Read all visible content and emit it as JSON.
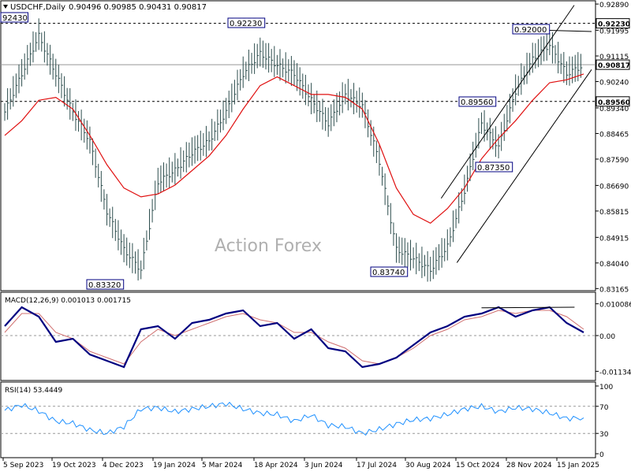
{
  "header": {
    "menu_icon": "triangle-down-icon",
    "symbol": "USDCHF,Daily",
    "ohlc": "0.90496 0.90985 0.90431 0.90817"
  },
  "watermark": "Action Forex",
  "colors": {
    "price_bars": "#2f4f4f",
    "ma": "#e01010",
    "trendline": "#000000",
    "macd": "#000080",
    "signal": "#d07070",
    "rsi": "#1e90ff",
    "level_box": "#000080"
  },
  "chart_data": [
    {
      "type": "line",
      "panel": "price",
      "title": "USDCHF,Daily",
      "y_axis_labels": [
        "0.92890",
        "0.91995",
        "0.91115",
        "0.90240",
        "0.89340",
        "0.88465",
        "0.87590",
        "0.86690",
        "0.85815",
        "0.84915",
        "0.84040",
        "0.83165"
      ],
      "ylim": [
        0.8312,
        0.9292
      ],
      "current_price": "0.90817",
      "horizontal_levels": [
        {
          "value": 0.9223,
          "label": "0.92230"
        },
        {
          "value": 0.8956,
          "label": "0.89560"
        }
      ],
      "level_labels": [
        "92430",
        "0.92230",
        "0.92000",
        "0.89560",
        "0.87350",
        "0.83320",
        "0.83740"
      ],
      "x_labels": [
        "5 Sep 2023",
        "19 Oct 2023",
        "4 Dec 2023",
        "19 Jan 2024",
        "5 Mar 2024",
        "18 Apr 2024",
        "3 Jun 2024",
        "17 Jul 2024",
        "30 Aug 2024",
        "15 Oct 2024",
        "28 Nov 2024",
        "15 Jan 2025"
      ],
      "series": [
        {
          "type": "close",
          "x": [
            "5 Sep 2023",
            "19 Sep 2023",
            "3 Oct 2023",
            "19 Oct 2023",
            "2 Nov 2023",
            "16 Nov 2023",
            "4 Dec 2023",
            "18 Dec 2023",
            "2 Jan 2024",
            "19 Jan 2024",
            "2 Feb 2024",
            "16 Feb 2024",
            "5 Mar 2024",
            "19 Mar 2024",
            "2 Apr 2024",
            "18 Apr 2024",
            "2 May 2024",
            "17 May 2024",
            "3 Jun 2024",
            "17 Jun 2024",
            "1 Jul 2024",
            "17 Jul 2024",
            "31 Jul 2024",
            "14 Aug 2024",
            "30 Aug 2024",
            "13 Sep 2024",
            "27 Sep 2024",
            "15 Oct 2024",
            "29 Oct 2024",
            "12 Nov 2024",
            "28 Nov 2024",
            "12 Dec 2024",
            "27 Dec 2024",
            "15 Jan 2025",
            "24 Jan 2025"
          ],
          "values": [
            0.892,
            0.905,
            0.918,
            0.905,
            0.892,
            0.882,
            0.858,
            0.845,
            0.838,
            0.868,
            0.872,
            0.878,
            0.882,
            0.892,
            0.905,
            0.912,
            0.908,
            0.905,
            0.896,
            0.888,
            0.898,
            0.894,
            0.875,
            0.845,
            0.842,
            0.838,
            0.846,
            0.865,
            0.888,
            0.88,
            0.899,
            0.91,
            0.915,
            0.905,
            0.908
          ]
        },
        {
          "name": "MA",
          "values": [
            0.884,
            0.889,
            0.896,
            0.897,
            0.893,
            0.884,
            0.874,
            0.866,
            0.863,
            0.864,
            0.867,
            0.872,
            0.877,
            0.884,
            0.893,
            0.901,
            0.904,
            0.901,
            0.898,
            0.898,
            0.897,
            0.893,
            0.881,
            0.866,
            0.857,
            0.854,
            0.859,
            0.866,
            0.876,
            0.883,
            0.889,
            0.896,
            0.902,
            0.903,
            0.905
          ]
        }
      ]
    },
    {
      "type": "line",
      "panel": "macd",
      "title": "MACD(12,26,9) 0.001013 0.001715",
      "y_axis_labels": [
        "0.010086",
        "0.00",
        "-0.011342"
      ],
      "ylim": [
        -0.0135,
        0.0115
      ],
      "series": [
        {
          "name": "MACD",
          "values": [
            0.003,
            0.009,
            0.006,
            -0.002,
            -0.001,
            -0.006,
            -0.008,
            -0.01,
            0.002,
            0.003,
            -0.001,
            0.004,
            0.005,
            0.007,
            0.008,
            0.003,
            0.004,
            -0.001,
            0.002,
            -0.004,
            -0.005,
            -0.01,
            -0.009,
            -0.007,
            -0.003,
            0.001,
            0.003,
            0.006,
            0.007,
            0.009,
            0.006,
            0.008,
            0.009,
            0.004,
            0.001
          ]
        },
        {
          "name": "Signal",
          "values": [
            0.001,
            0.007,
            0.007,
            0.001,
            -0.001,
            -0.005,
            -0.007,
            -0.009,
            -0.002,
            0.002,
            0.0,
            0.002,
            0.004,
            0.006,
            0.007,
            0.005,
            0.004,
            0.001,
            0.001,
            -0.002,
            -0.004,
            -0.008,
            -0.009,
            -0.007,
            -0.004,
            0.0,
            0.002,
            0.005,
            0.006,
            0.008,
            0.007,
            0.008,
            0.008,
            0.006,
            0.002
          ]
        }
      ]
    },
    {
      "type": "line",
      "panel": "rsi",
      "title": "RSI(14) 53.4449",
      "y_axis_labels": [
        "100",
        "70",
        "30",
        "0"
      ],
      "ylim": [
        0,
        100
      ],
      "levels": [
        70,
        30
      ],
      "series": [
        {
          "name": "RSI",
          "values": [
            64,
            72,
            63,
            48,
            45,
            35,
            30,
            40,
            66,
            68,
            62,
            66,
            70,
            74,
            66,
            60,
            58,
            48,
            57,
            42,
            40,
            30,
            36,
            44,
            50,
            52,
            58,
            66,
            70,
            62,
            68,
            66,
            60,
            52,
            53
          ]
        }
      ]
    }
  ]
}
